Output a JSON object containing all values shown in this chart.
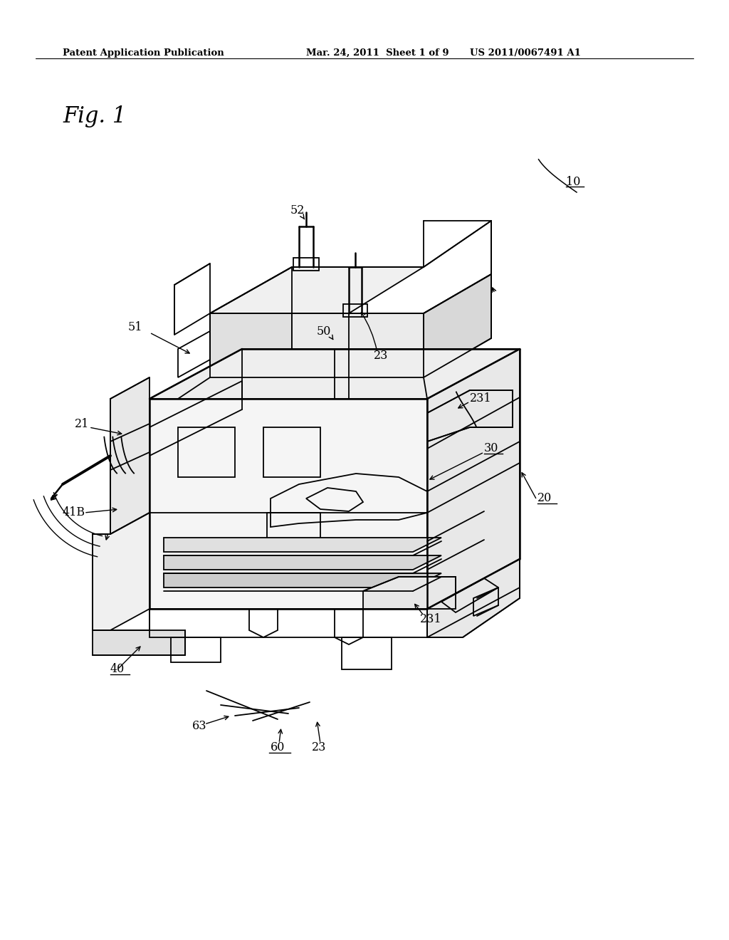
{
  "background_color": "#ffffff",
  "header_left": "Patent Application Publication",
  "header_center": "Mar. 24, 2011  Sheet 1 of 9",
  "header_right": "US 2011/0067491 A1",
  "fig_label": "Fig. 1",
  "page_width": 10.24,
  "page_height": 13.2,
  "dpi": 100
}
